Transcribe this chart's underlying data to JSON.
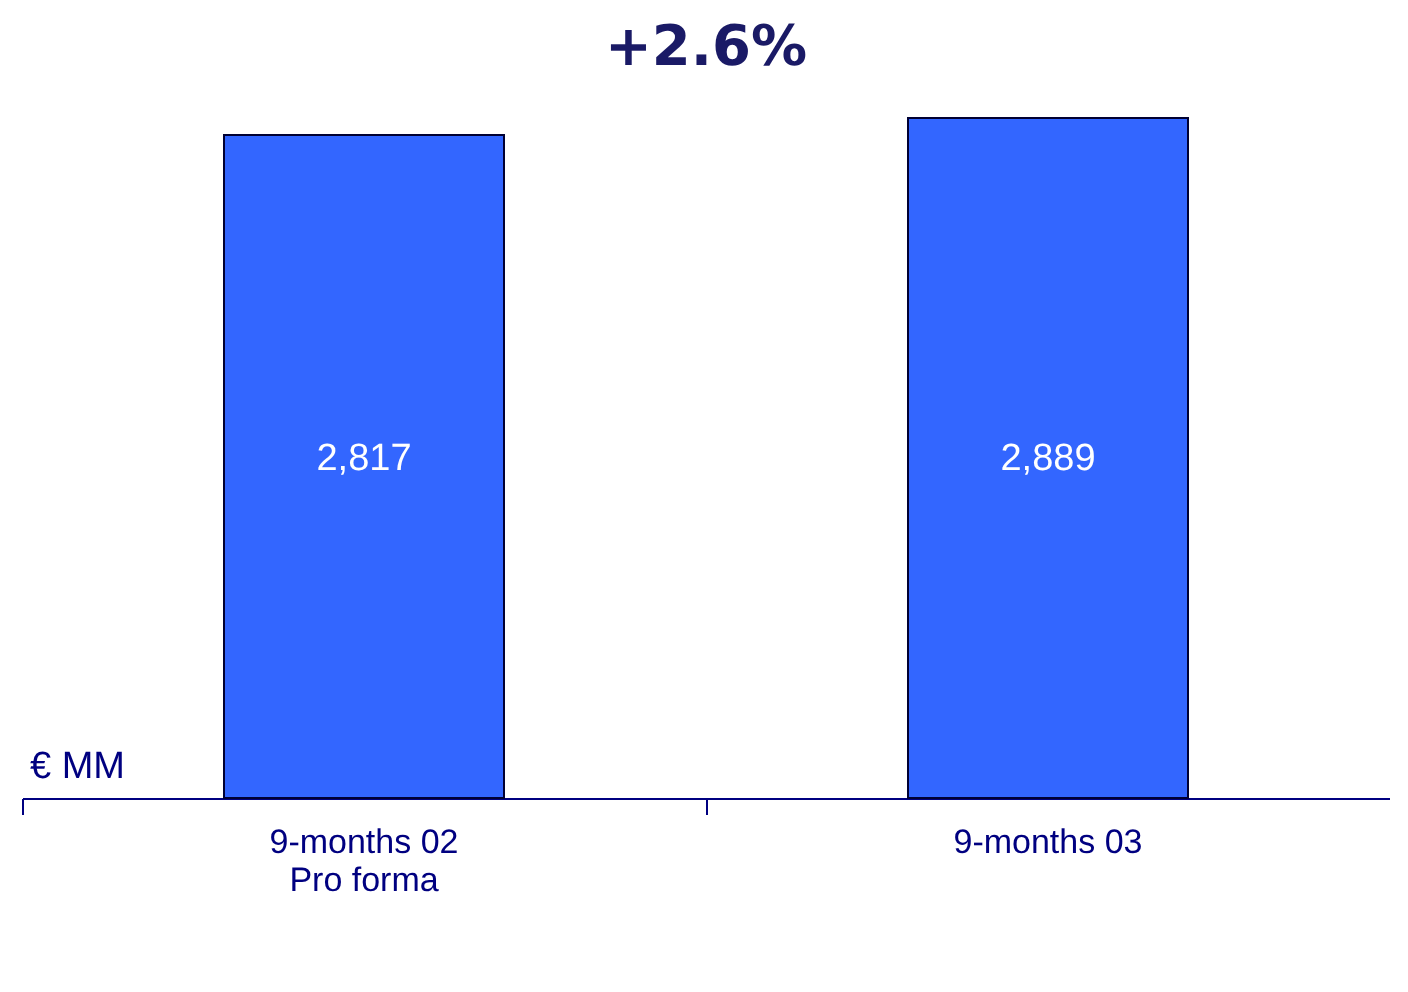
{
  "chart_data": {
    "type": "bar",
    "title": "+2.6%",
    "ylabel": "€ MM",
    "categories": [
      "9-months 02\nPro forma",
      "9-months 03"
    ],
    "values": [
      2817,
      2889
    ],
    "color": "#3366ff",
    "value_labels": [
      "2,817",
      "2,889"
    ],
    "grid": false
  }
}
